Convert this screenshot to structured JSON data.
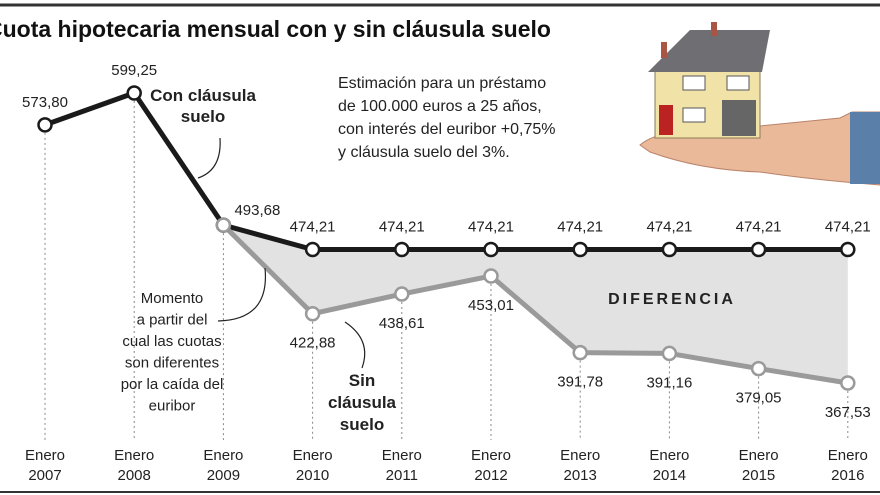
{
  "chart_data": {
    "type": "line",
    "title": "Cuota hipotecaria mensual con y sin cláusula suelo",
    "note": [
      "Estimación para un préstamo",
      "de 100.000 euros a 25 años,",
      "con interés del euribor +0,75%",
      "y cláusula suelo del 3%."
    ],
    "annotation": [
      "Momento",
      "a partir del",
      "cual las cuotas",
      "son diferentes",
      "por la caída del",
      "euribor"
    ],
    "area_label": "DIFERENCIA",
    "categories": [
      "Enero 2007",
      "Enero 2008",
      "Enero 2009",
      "Enero 2010",
      "Enero 2011",
      "Enero 2012",
      "Enero 2013",
      "Enero 2014",
      "Enero 2015",
      "Enero 2016"
    ],
    "series": [
      {
        "name": "Con cláusula suelo",
        "color": "#1a1a1a",
        "values": [
          573.8,
          599.25,
          493.68,
          474.21,
          474.21,
          474.21,
          474.21,
          474.21,
          474.21,
          474.21
        ],
        "value_labels": [
          "573,80",
          "599,25",
          "493,68",
          "474,21",
          "474,21",
          "474,21",
          "474,21",
          "474,21",
          "474,21",
          "474,21"
        ]
      },
      {
        "name": "Sin cláusula suelo",
        "color": "#9a9a9a",
        "values": [
          null,
          null,
          493.68,
          422.88,
          438.61,
          453.01,
          391.78,
          391.16,
          379.05,
          367.53
        ],
        "value_labels": [
          null,
          null,
          null,
          "422,88",
          "438,61",
          "453,01",
          "391,78",
          "391,16",
          "379,05",
          "367,53"
        ]
      }
    ],
    "area_color": "#e2e2e2"
  }
}
